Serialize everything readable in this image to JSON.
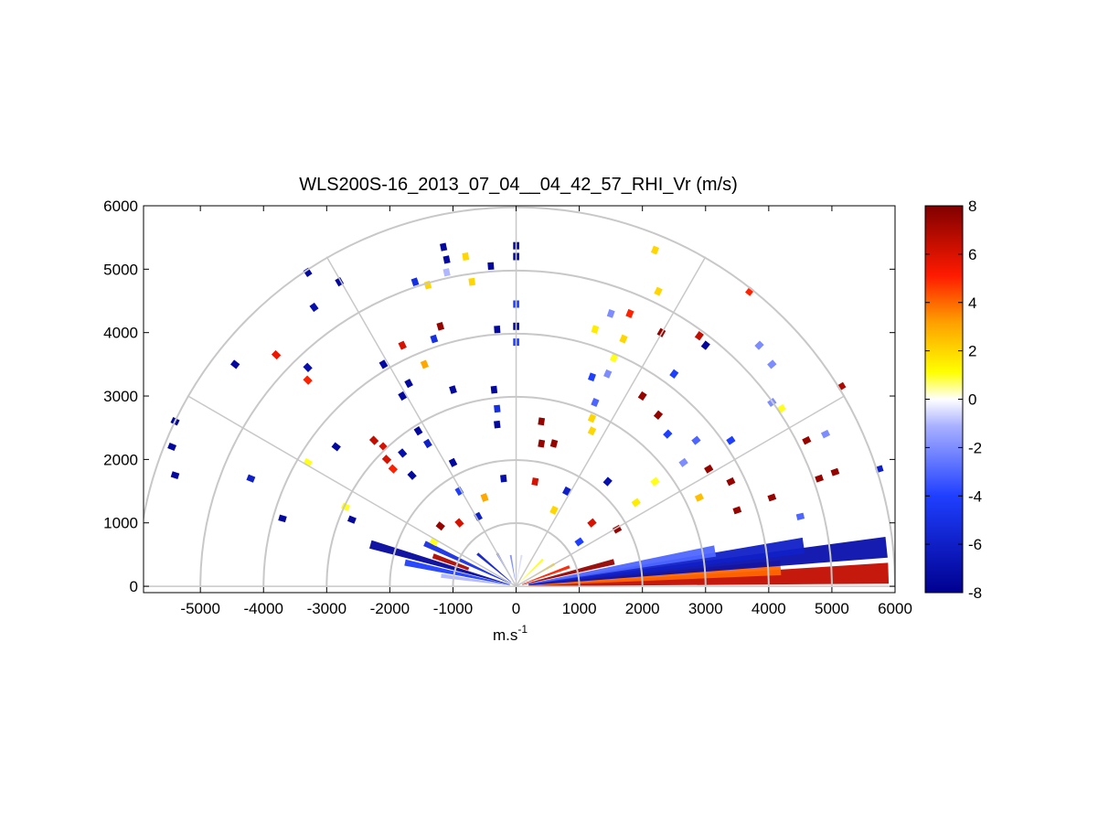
{
  "chart_data": {
    "type": "heatmap",
    "title": "WLS200S-16_2013_07_04__04_42_57_RHI_Vr (m/s)",
    "xlabel_base": "m.s",
    "xlabel_exp": "-1",
    "xlim": [
      -5900,
      6000
    ],
    "ylim": [
      -100,
      6000
    ],
    "x_ticks": [
      -5000,
      -4000,
      -3000,
      -2000,
      -1000,
      0,
      1000,
      2000,
      3000,
      4000,
      5000,
      6000
    ],
    "y_ticks": [
      0,
      1000,
      2000,
      3000,
      4000,
      5000,
      6000
    ],
    "polar_grid": {
      "ring_radii": [
        1000,
        2000,
        3000,
        4000,
        5000,
        6000
      ],
      "spoke_angles_deg": [
        0,
        30,
        60,
        90,
        120,
        150,
        180
      ]
    },
    "colorbar": {
      "min": -8,
      "max": 8,
      "ticks": [
        8,
        6,
        4,
        2,
        0,
        -2,
        -4,
        -6,
        -8
      ]
    },
    "rays": [
      {
        "angle": 2,
        "r0": 200,
        "r1": 5900,
        "v": 6.5
      },
      {
        "angle": 4,
        "r0": 200,
        "r1": 4200,
        "v": 4
      },
      {
        "angle": 6,
        "r0": 200,
        "r1": 5900,
        "v": -7
      },
      {
        "angle": 8,
        "r0": 200,
        "r1": 4600,
        "v": -6
      },
      {
        "angle": 10,
        "r0": 200,
        "r1": 3200,
        "v": -3
      },
      {
        "angle": 14,
        "r0": 100,
        "r1": 1600,
        "v": 7.5
      },
      {
        "angle": 20,
        "r0": 100,
        "r1": 900,
        "v": 5
      },
      {
        "angle": 30,
        "r0": 100,
        "r1": 700,
        "v": 2
      },
      {
        "angle": 45,
        "r0": 100,
        "r1": 600,
        "v": 1
      },
      {
        "angle": 60,
        "r0": 100,
        "r1": 500,
        "v": 0.5
      },
      {
        "angle": 80,
        "r0": 100,
        "r1": 500,
        "v": -0.5
      },
      {
        "angle": 100,
        "r0": 100,
        "r1": 500,
        "v": -2
      },
      {
        "angle": 120,
        "r0": 100,
        "r1": 600,
        "v": -4
      },
      {
        "angle": 140,
        "r0": 100,
        "r1": 800,
        "v": -6
      },
      {
        "angle": 155,
        "r0": 100,
        "r1": 1600,
        "v": -5
      },
      {
        "angle": 160,
        "r0": 800,
        "r1": 1400,
        "v": 7
      },
      {
        "angle": 164,
        "r0": 100,
        "r1": 2400,
        "v": -7.5
      },
      {
        "angle": 168,
        "r0": 100,
        "r1": 1800,
        "v": -4
      },
      {
        "angle": 172,
        "r0": 100,
        "r1": 1200,
        "v": -1
      }
    ],
    "cells": [
      {
        "x": -5400,
        "y": 2600,
        "v": -7.5
      },
      {
        "x": -5450,
        "y": 2200,
        "v": -7.5
      },
      {
        "x": -5400,
        "y": 1750,
        "v": -7.5
      },
      {
        "x": -4450,
        "y": 3500,
        "v": -7.5
      },
      {
        "x": -4200,
        "y": 1700,
        "v": -6
      },
      {
        "x": -3700,
        "y": 1070,
        "v": -7.5
      },
      {
        "x": -3800,
        "y": 3650,
        "v": 5.5
      },
      {
        "x": -3300,
        "y": 3450,
        "v": -7
      },
      {
        "x": -3300,
        "y": 3250,
        "v": 5
      },
      {
        "x": -3300,
        "y": 4950,
        "v": -7.5
      },
      {
        "x": -3200,
        "y": 4400,
        "v": -7
      },
      {
        "x": -2800,
        "y": 4800,
        "v": -7.5
      },
      {
        "x": -3300,
        "y": 1950,
        "v": 1
      },
      {
        "x": -2850,
        "y": 2200,
        "v": -7.5
      },
      {
        "x": -2700,
        "y": 1250,
        "v": 1
      },
      {
        "x": -2600,
        "y": 1050,
        "v": -7.5
      },
      {
        "x": -2250,
        "y": 2300,
        "v": 6.5
      },
      {
        "x": -2100,
        "y": 2200,
        "v": 6
      },
      {
        "x": -2100,
        "y": 3500,
        "v": -7.5
      },
      {
        "x": -2050,
        "y": 2000,
        "v": 6
      },
      {
        "x": -1950,
        "y": 1850,
        "v": 5
      },
      {
        "x": -1800,
        "y": 3000,
        "v": -7.5
      },
      {
        "x": -1800,
        "y": 2100,
        "v": -7
      },
      {
        "x": -1650,
        "y": 1750,
        "v": -7.5
      },
      {
        "x": -1800,
        "y": 3800,
        "v": 6
      },
      {
        "x": -1700,
        "y": 3200,
        "v": -7.5
      },
      {
        "x": -1450,
        "y": 3500,
        "v": 3
      },
      {
        "x": -1400,
        "y": 2250,
        "v": -6
      },
      {
        "x": -1550,
        "y": 2450,
        "v": -7.5
      },
      {
        "x": -1300,
        "y": 3900,
        "v": -5
      },
      {
        "x": -1200,
        "y": 4100,
        "v": 7.5
      },
      {
        "x": -1600,
        "y": 4800,
        "v": -5
      },
      {
        "x": -1400,
        "y": 4750,
        "v": 2
      },
      {
        "x": -1100,
        "y": 5150,
        "v": -7.5
      },
      {
        "x": -1100,
        "y": 4950,
        "v": -1
      },
      {
        "x": -700,
        "y": 4800,
        "v": 2
      },
      {
        "x": -1000,
        "y": 3100,
        "v": -7.5
      },
      {
        "x": -1000,
        "y": 1950,
        "v": -7.5
      },
      {
        "x": -900,
        "y": 1500,
        "v": -4
      },
      {
        "x": -350,
        "y": 3100,
        "v": -7.5
      },
      {
        "x": -300,
        "y": 2800,
        "v": -5
      },
      {
        "x": -300,
        "y": 2550,
        "v": -7.5
      },
      {
        "x": -300,
        "y": 4050,
        "v": -7.5
      },
      {
        "x": -400,
        "y": 5050,
        "v": -7.5
      },
      {
        "x": -800,
        "y": 5200,
        "v": 2
      },
      {
        "x": -1150,
        "y": 5350,
        "v": -7.5
      },
      {
        "x": 0,
        "y": 5370,
        "v": -7.5
      },
      {
        "x": 0,
        "y": 5200,
        "v": -7.5
      },
      {
        "x": 0,
        "y": 4450,
        "v": -4
      },
      {
        "x": 0,
        "y": 4100,
        "v": -7.5
      },
      {
        "x": 0,
        "y": 3850,
        "v": -4
      },
      {
        "x": 400,
        "y": 2600,
        "v": 7.5
      },
      {
        "x": 400,
        "y": 2250,
        "v": 7.5
      },
      {
        "x": 2200,
        "y": 5300,
        "v": 2
      },
      {
        "x": 2250,
        "y": 4650,
        "v": 2
      },
      {
        "x": 1500,
        "y": 4300,
        "v": -2
      },
      {
        "x": 1800,
        "y": 4300,
        "v": 5
      },
      {
        "x": 1250,
        "y": 4050,
        "v": 1.5
      },
      {
        "x": 1700,
        "y": 3900,
        "v": 2
      },
      {
        "x": 1550,
        "y": 3600,
        "v": 1
      },
      {
        "x": 1200,
        "y": 3300,
        "v": -4
      },
      {
        "x": 1450,
        "y": 3350,
        "v": -2
      },
      {
        "x": 1250,
        "y": 2900,
        "v": -3
      },
      {
        "x": 1200,
        "y": 2650,
        "v": 2
      },
      {
        "x": 1200,
        "y": 2450,
        "v": 2
      },
      {
        "x": 600,
        "y": 2250,
        "v": 7.5
      },
      {
        "x": 2300,
        "y": 4000,
        "v": 7.5
      },
      {
        "x": 2900,
        "y": 3950,
        "v": 6.5
      },
      {
        "x": 3000,
        "y": 3800,
        "v": -7.5
      },
      {
        "x": 2500,
        "y": 3350,
        "v": -4
      },
      {
        "x": 2000,
        "y": 3000,
        "v": 7.5
      },
      {
        "x": 2250,
        "y": 2700,
        "v": 7.5
      },
      {
        "x": 2400,
        "y": 2400,
        "v": -4
      },
      {
        "x": 2850,
        "y": 2300,
        "v": -3
      },
      {
        "x": 3400,
        "y": 2300,
        "v": -4
      },
      {
        "x": 2650,
        "y": 1950,
        "v": -2
      },
      {
        "x": 2200,
        "y": 1650,
        "v": 1
      },
      {
        "x": 2900,
        "y": 1400,
        "v": 2.5
      },
      {
        "x": 1900,
        "y": 1320,
        "v": 1.5
      },
      {
        "x": 1450,
        "y": 1650,
        "v": -7
      },
      {
        "x": 3400,
        "y": 1650,
        "v": 7.5
      },
      {
        "x": 3700,
        "y": 4650,
        "v": 5
      },
      {
        "x": 3850,
        "y": 3800,
        "v": -2
      },
      {
        "x": 4050,
        "y": 3500,
        "v": -2
      },
      {
        "x": 4050,
        "y": 2900,
        "v": -2
      },
      {
        "x": 4200,
        "y": 2800,
        "v": 1
      },
      {
        "x": 4600,
        "y": 2300,
        "v": 7.5
      },
      {
        "x": 4900,
        "y": 2400,
        "v": -2
      },
      {
        "x": 5150,
        "y": 3150,
        "v": 7
      },
      {
        "x": 5050,
        "y": 1800,
        "v": 7.5
      },
      {
        "x": 5750,
        "y": 1850,
        "v": -6
      },
      {
        "x": 3500,
        "y": 1200,
        "v": 7.5
      },
      {
        "x": 4050,
        "y": 1400,
        "v": 7.5
      },
      {
        "x": 4800,
        "y": 1700,
        "v": 7.5
      },
      {
        "x": 4500,
        "y": 1100,
        "v": -3
      },
      {
        "x": 3050,
        "y": 1850,
        "v": 7.5
      },
      {
        "x": 800,
        "y": 1500,
        "v": -6
      },
      {
        "x": 600,
        "y": 1200,
        "v": 2
      },
      {
        "x": 1200,
        "y": 1000,
        "v": 6
      },
      {
        "x": 1600,
        "y": 900,
        "v": 7.5
      },
      {
        "x": -500,
        "y": 1400,
        "v": 3
      },
      {
        "x": -600,
        "y": 1100,
        "v": -6
      },
      {
        "x": -900,
        "y": 1000,
        "v": 6
      },
      {
        "x": -1200,
        "y": 950,
        "v": 7.5
      },
      {
        "x": -200,
        "y": 1700,
        "v": -7
      },
      {
        "x": 300,
        "y": 1650,
        "v": 6
      },
      {
        "x": -1300,
        "y": 700,
        "v": 1
      },
      {
        "x": 1000,
        "y": 700,
        "v": -4
      }
    ]
  }
}
